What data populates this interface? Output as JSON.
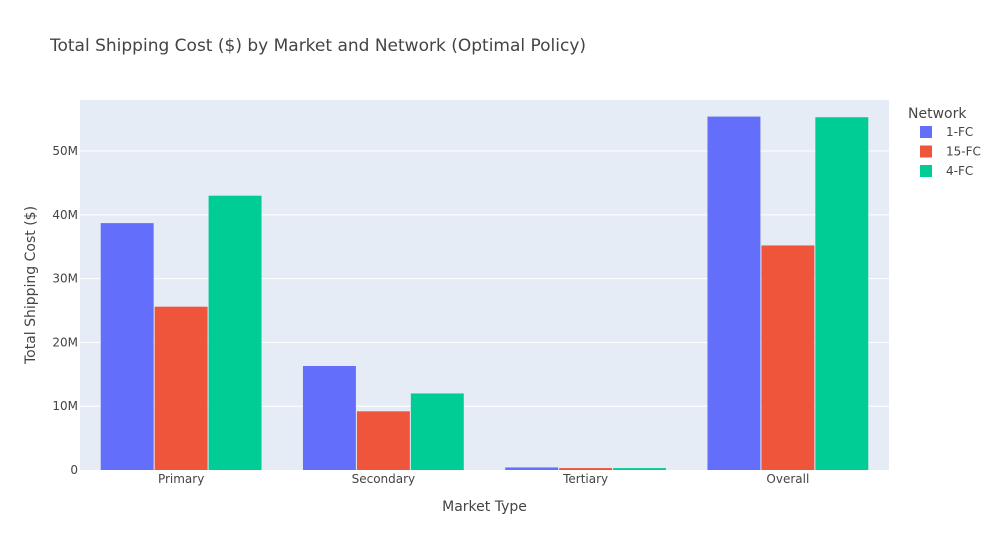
{
  "chart_data": {
    "type": "bar",
    "title": "Total Shipping Cost ($) by Market and Network (Optimal Policy)",
    "xlabel": "Market Type",
    "ylabel": "Total Shipping Cost ($)",
    "categories": [
      "Primary",
      "Secondary",
      "Tertiary",
      "Overall"
    ],
    "ylim": [
      0,
      58000000
    ],
    "yticks": [
      {
        "value": 0,
        "label": "0"
      },
      {
        "value": 10000000,
        "label": "10M"
      },
      {
        "value": 20000000,
        "label": "20M"
      },
      {
        "value": 30000000,
        "label": "30M"
      },
      {
        "value": 40000000,
        "label": "40M"
      },
      {
        "value": 50000000,
        "label": "50M"
      }
    ],
    "grid": true,
    "legend": {
      "title": "Network",
      "placement": "right"
    },
    "series": [
      {
        "name": "1-FC",
        "color": "#636efa",
        "values": [
          38700000,
          16300000,
          400000,
          55400000
        ]
      },
      {
        "name": "15-FC",
        "color": "#ef553b",
        "values": [
          25600000,
          9200000,
          300000,
          35200000
        ]
      },
      {
        "name": "4-FC",
        "color": "#00cc96",
        "values": [
          43000000,
          12000000,
          300000,
          55300000
        ]
      }
    ],
    "plot_background": "#e5ecf6"
  }
}
